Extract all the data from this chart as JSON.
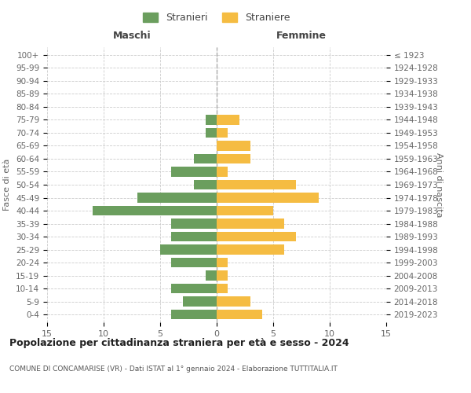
{
  "age_groups": [
    "0-4",
    "5-9",
    "10-14",
    "15-19",
    "20-24",
    "25-29",
    "30-34",
    "35-39",
    "40-44",
    "45-49",
    "50-54",
    "55-59",
    "60-64",
    "65-69",
    "70-74",
    "75-79",
    "80-84",
    "85-89",
    "90-94",
    "95-99",
    "100+"
  ],
  "birth_years": [
    "2019-2023",
    "2014-2018",
    "2009-2013",
    "2004-2008",
    "1999-2003",
    "1994-1998",
    "1989-1993",
    "1984-1988",
    "1979-1983",
    "1974-1978",
    "1969-1973",
    "1964-1968",
    "1959-1963",
    "1954-1958",
    "1949-1953",
    "1944-1948",
    "1939-1943",
    "1934-1938",
    "1929-1933",
    "1924-1928",
    "≤ 1923"
  ],
  "maschi": [
    4,
    3,
    4,
    1,
    4,
    5,
    4,
    4,
    11,
    7,
    2,
    4,
    2,
    0,
    1,
    1,
    0,
    0,
    0,
    0,
    0
  ],
  "femmine": [
    4,
    3,
    1,
    1,
    1,
    6,
    7,
    6,
    5,
    9,
    7,
    1,
    3,
    3,
    1,
    2,
    0,
    0,
    0,
    0,
    0
  ],
  "maschi_color": "#6b9e5e",
  "femmine_color": "#f5bc42",
  "title": "Popolazione per cittadinanza straniera per età e sesso - 2024",
  "subtitle": "COMUNE DI CONCAMARISE (VR) - Dati ISTAT al 1° gennaio 2024 - Elaborazione TUTTITALIA.IT",
  "xlabel_left": "Maschi",
  "xlabel_right": "Femmine",
  "ylabel_left": "Fasce di età",
  "ylabel_right": "Anni di nascita",
  "legend_maschi": "Stranieri",
  "legend_femmine": "Straniere",
  "xlim": 15,
  "background_color": "#ffffff",
  "grid_color": "#cccccc",
  "bar_height": 0.75
}
